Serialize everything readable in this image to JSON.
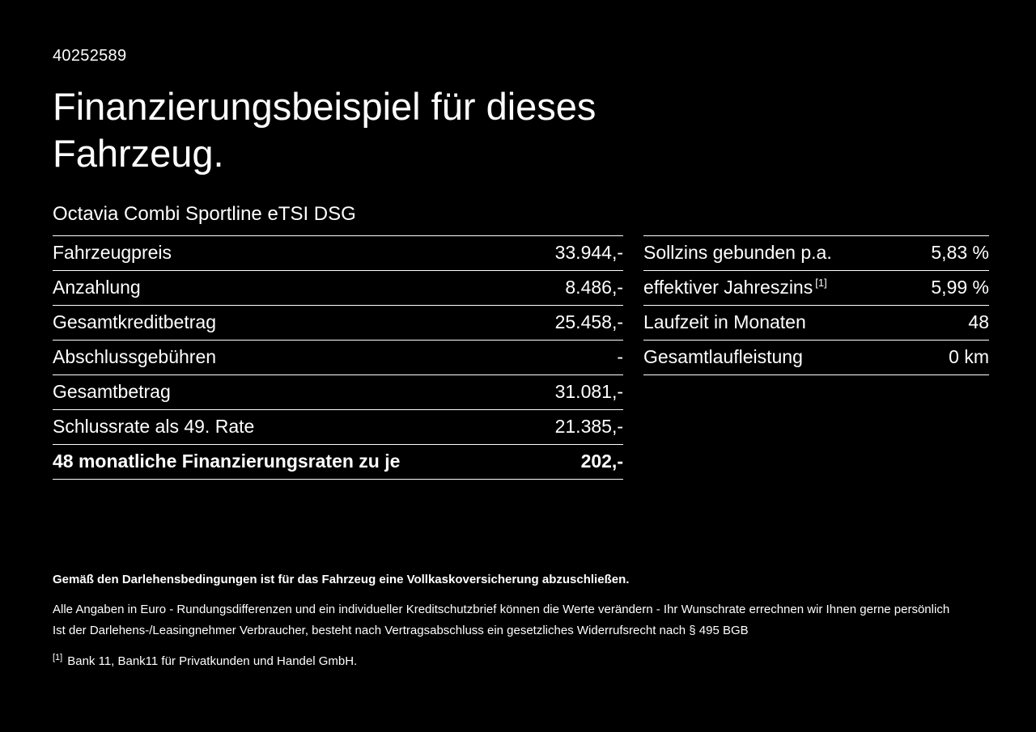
{
  "page": {
    "id_number": "40252589",
    "title": "Finanzierungsbeispiel für dieses Fahrzeug.",
    "vehicle_model": "Octavia Combi Sportline eTSI DSG"
  },
  "left_table": {
    "rows": [
      {
        "label": "Fahrzeugpreis",
        "value": "33.944,-"
      },
      {
        "label": "Anzahlung",
        "value": "8.486,-"
      },
      {
        "label": "Gesamtkreditbetrag",
        "value": "25.458,-"
      },
      {
        "label": "Abschlussgebühren",
        "value": "-"
      },
      {
        "label": "Gesamtbetrag",
        "value": "31.081,-"
      },
      {
        "label": "Schlussrate als 49. Rate",
        "value": "21.385,-"
      },
      {
        "label": "48 monatliche Finanzierungsraten zu je",
        "value": "202,-"
      }
    ]
  },
  "right_table": {
    "rows": [
      {
        "label": "Sollzins gebunden p.a.",
        "footnote": "",
        "value": "5,83 %"
      },
      {
        "label": "effektiver Jahreszins",
        "footnote": "[1]",
        "value": "5,99 %"
      },
      {
        "label": "Laufzeit in Monaten",
        "footnote": "",
        "value": "48"
      },
      {
        "label": "Gesamtlaufleistung",
        "footnote": "",
        "value": "0 km"
      }
    ]
  },
  "footer": {
    "bold_note": "Gemäß den Darlehensbedingungen ist für das Fahrzeug eine Vollkaskoversicherung abzuschließen.",
    "note_line1": "Alle Angaben in Euro - Rundungsdifferenzen und ein individueller Kreditschutzbrief können die Werte verändern - Ihr Wunschrate errechnen wir Ihnen gerne persönlich",
    "note_line2": "Ist der Darlehens-/Leasingnehmer Verbraucher, besteht nach Vertragsabschluss ein gesetzliches Widerrufsrecht nach § 495 BGB",
    "footnote_marker": "[1]",
    "footnote_text": "Bank 11, Bank11 für Privatkunden und Handel GmbH."
  },
  "colors": {
    "background": "#000000",
    "text": "#ffffff",
    "line": "#ffffff"
  }
}
